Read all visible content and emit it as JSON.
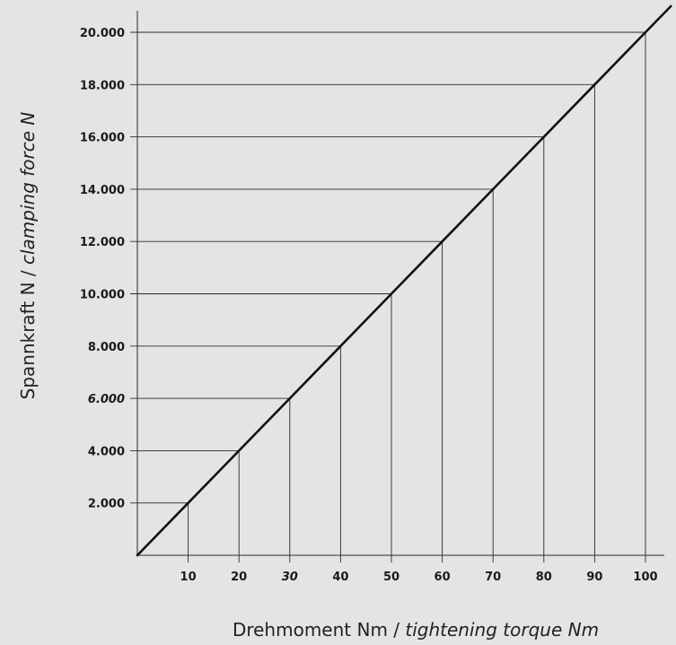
{
  "chart_data": {
    "type": "line",
    "xlabel": "Drehmoment Nm",
    "xlabel_en": "tightening torque Nm",
    "ylabel": "Spannkraft N",
    "ylabel_en": "clamping force N",
    "x_ticks": [
      "10",
      "20",
      "30",
      "40",
      "50",
      "60",
      "70",
      "80",
      "90",
      "100"
    ],
    "y_ticks": [
      "2.000",
      "4.000",
      "6.000",
      "8.000",
      "10.000",
      "12.000",
      "14.000",
      "16.000",
      "18.000",
      "20.000"
    ],
    "highlight": {
      "x": "30",
      "y": "6.000"
    },
    "xlim": [
      0,
      105
    ],
    "ylim": [
      0,
      21000
    ],
    "grid": false,
    "series": [
      {
        "x": [
          0,
          10,
          20,
          30,
          40,
          50,
          60,
          70,
          80,
          90,
          100,
          105
        ],
        "y": [
          0,
          2000,
          4000,
          6000,
          8000,
          10000,
          12000,
          14000,
          16000,
          18000,
          20000,
          21000
        ]
      }
    ],
    "colors": {
      "line": "#111111",
      "guides": "#2a2a2a",
      "axis": "#2a2a2a",
      "background": "#e2e4e6"
    }
  }
}
